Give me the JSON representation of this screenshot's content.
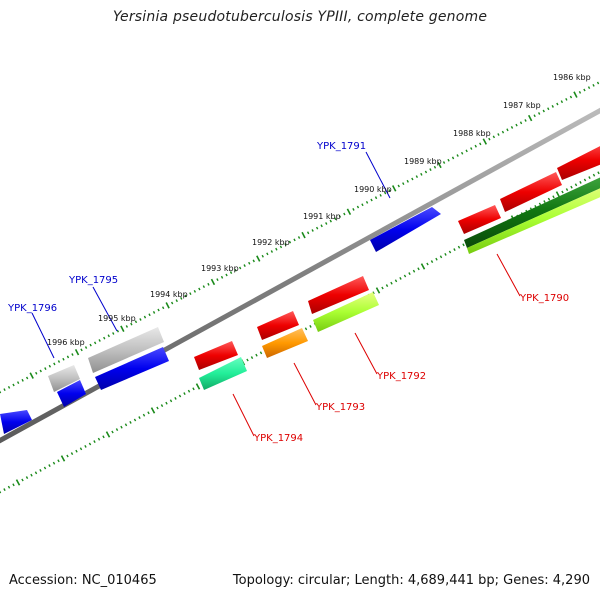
{
  "title": "Yersinia pseudotuberculosis YPIII, complete genome",
  "footer": {
    "accession": "Accession: NC_010465",
    "summary": "Topology: circular; Length: 4,689,441 bp; Genes: 4,290"
  },
  "colors": {
    "backbone": "#888888",
    "ticks": "#1a8a1a",
    "forward_label": "#0000cc",
    "reverse_label": "#dd0000"
  },
  "kbp_ticks": [
    "1986 kbp",
    "1987 kbp",
    "1988 kbp",
    "1989 kbp",
    "1990 kbp",
    "1991 kbp",
    "1992 kbp",
    "1993 kbp",
    "1994 kbp",
    "1995 kbp",
    "1996 kbp"
  ],
  "gene_labels": {
    "ypk_1790": "YPK_1790",
    "ypk_1791": "YPK_1791",
    "ypk_1792": "YPK_1792",
    "ypk_1793": "YPK_1793",
    "ypk_1794": "YPK_1794",
    "ypk_1795": "YPK_1795",
    "ypk_1796": "YPK_1796"
  }
}
